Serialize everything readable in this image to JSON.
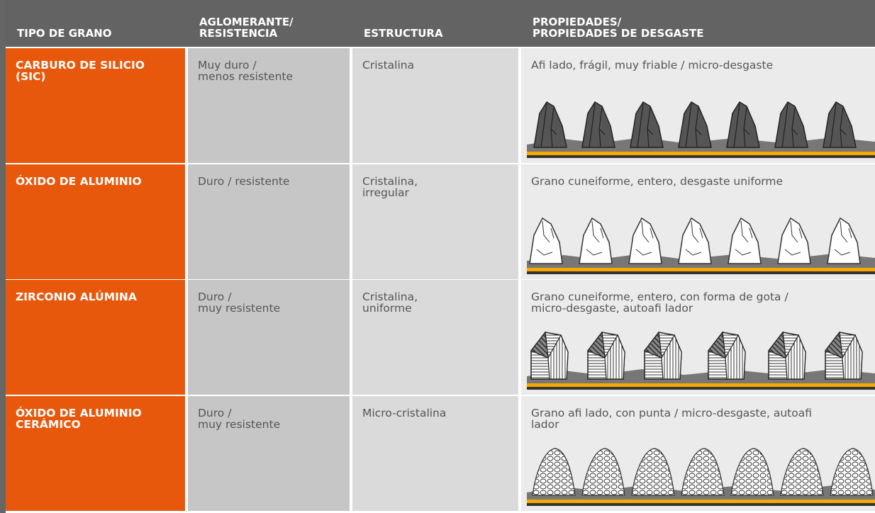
{
  "header": {
    "columns": [
      [
        "TIPO DE GRANO"
      ],
      [
        "AGLOMERANTE/",
        "RESISTENCIA"
      ],
      [
        "ESTRUCTURA"
      ],
      [
        "PROPIEDADES/",
        "PROPIEDADES DE DESGASTE"
      ]
    ]
  },
  "table": {
    "rows": [
      [
        [
          "CARBURO DE SILICIO",
          "(SIC)"
        ],
        [
          "Muy duro /",
          "menos resistente"
        ],
        [
          "Cristalina"
        ],
        [
          "Afi lado, frágil, muy friable / micro-desgaste"
        ]
      ],
      [
        [
          "ÓXIDO DE ALUMINIO"
        ],
        [
          "Duro / resistente"
        ],
        [
          "Cristalina,",
          "irregular"
        ],
        [
          "Grano cuneiforme, entero, desgaste uniforme"
        ]
      ],
      [
        [
          "ZIRCONIO ALÚMINA"
        ],
        [
          "Duro /",
          "muy resistente"
        ],
        [
          "Cristalina,",
          "uniforme"
        ],
        [
          "Grano cuneiforme, entero, con forma de gota /",
          "micro-desgaste, autoafi lador"
        ]
      ],
      [
        [
          "ÓXIDO DE ALUMINIO",
          "CERÁMICO"
        ],
        [
          "Duro /",
          "muy resistente"
        ],
        [
          "Micro-cristalina"
        ],
        [
          "Grano afi lado, con punta / micro-desgaste, autoafi",
          "lador"
        ]
      ]
    ]
  }
}
